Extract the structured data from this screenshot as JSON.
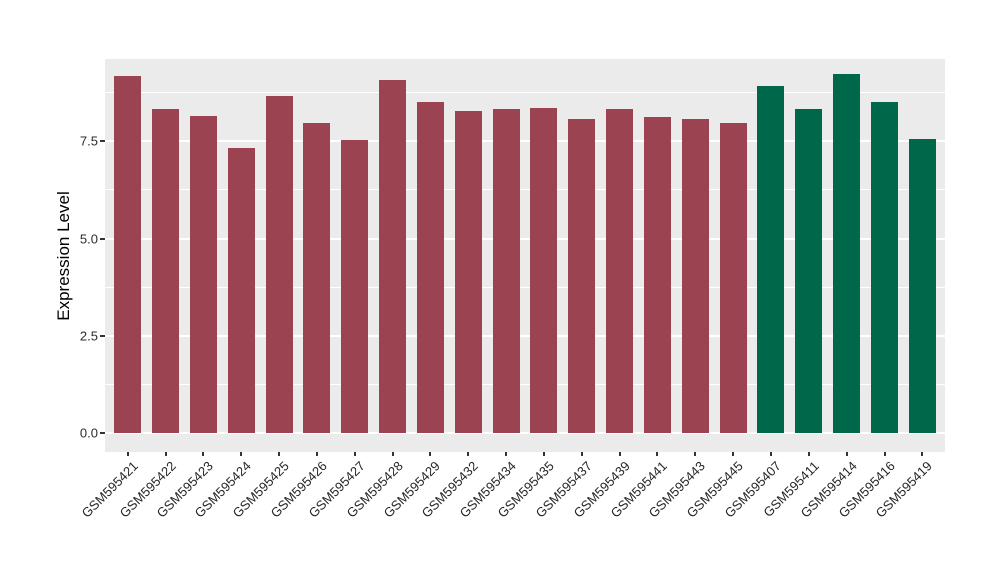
{
  "figure": {
    "background_color": "#FFFFFF",
    "panel_background_color": "#EBEBEB",
    "gridline_color": "#FFFFFF",
    "axis_text_color": "#2b2b2b",
    "tick_mark_color": "#333333"
  },
  "chart_data": {
    "type": "bar",
    "title": "",
    "xlabel": "",
    "ylabel": "Expression Level",
    "ylim": [
      0,
      9.6
    ],
    "grid": "on",
    "legend": "none",
    "ytick_labels": [
      "0.0",
      "2.5",
      "5.0",
      "7.5"
    ],
    "ytick_values": [
      0,
      2.5,
      5,
      7.5
    ],
    "minor_gridline_values": [
      1.25,
      3.75,
      6.25,
      8.75
    ],
    "categories": [
      "GSM595421",
      "GSM595422",
      "GSM595423",
      "GSM595424",
      "GSM595425",
      "GSM595426",
      "GSM595427",
      "GSM595428",
      "GSM595429",
      "GSM595432",
      "GSM595434",
      "GSM595435",
      "GSM595437",
      "GSM595439",
      "GSM595441",
      "GSM595443",
      "GSM595445",
      "GSM595407",
      "GSM595411",
      "GSM595414",
      "GSM595416",
      "GSM595419"
    ],
    "values": [
      9.18,
      8.32,
      8.15,
      7.33,
      8.66,
      7.98,
      7.53,
      9.07,
      8.51,
      8.28,
      8.32,
      8.35,
      8.06,
      8.32,
      8.12,
      8.06,
      7.96,
      8.92,
      8.32,
      9.24,
      8.52,
      7.57
    ],
    "groups": [
      "A",
      "A",
      "A",
      "A",
      "A",
      "A",
      "A",
      "A",
      "A",
      "A",
      "A",
      "A",
      "A",
      "A",
      "A",
      "A",
      "A",
      "B",
      "B",
      "B",
      "B",
      "B"
    ],
    "group_colors": {
      "A": "#9B4350",
      "B": "#00684A"
    }
  }
}
